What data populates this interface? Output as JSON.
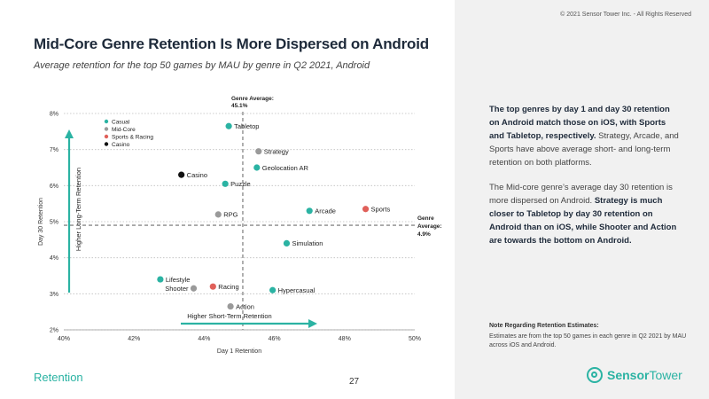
{
  "header": {
    "title": "Mid-Core Genre Retention Is More Dispersed on Android",
    "subtitle": "Average retention for the top 50 games by MAU by genre in Q2 2021, Android",
    "copyright": "© 2021 Sensor Tower Inc. - All Rights Reserved"
  },
  "footer": {
    "section": "Retention",
    "page": "27",
    "logo_bold": "Sensor",
    "logo_regular": "Tower"
  },
  "sidebar": {
    "p1_bold": "The top genres by day 1 and day 30 retention on Android match those on iOS, with Sports and Tabletop, respectively.",
    "p1_rest": " Strategy, Arcade, and Sports have above average short- and long-term retention on both platforms.",
    "p2_start": "The Mid-core genre’s average day 30 retention is more dispersed on Android. ",
    "p2_bold": "Strategy is much closer to Tabletop by day 30 retention on Android than on iOS, while Shooter and Action are towards the bottom on Android.",
    "note_title": "Note Regarding Retention Estimates:",
    "note_body": "Estimates are from the top 50 games in each genre in Q2 2021 by MAU across iOS and Android."
  },
  "chart_data": {
    "type": "scatter",
    "xlabel": "Day 1 Retention",
    "ylabel": "Day 30 Retention",
    "xlim": [
      40,
      50
    ],
    "ylim": [
      2,
      8
    ],
    "x_ticks": [
      40,
      42,
      44,
      46,
      48,
      50
    ],
    "x_tick_labels": [
      "40%",
      "42%",
      "44%",
      "46%",
      "48%",
      "50%"
    ],
    "y_ticks": [
      2,
      3,
      4,
      5,
      6,
      7,
      8
    ],
    "y_tick_labels": [
      "2%",
      "3%",
      "4%",
      "5%",
      "6%",
      "7%",
      "8%"
    ],
    "grid": "horizontal dotted",
    "legend_position": "top-left",
    "legend": [
      {
        "name": "Casual",
        "color": "#2bb3a3"
      },
      {
        "name": "Mid-Core",
        "color": "#9a9a9a"
      },
      {
        "name": "Sports & Racing",
        "color": "#e0605a"
      },
      {
        "name": "Casino",
        "color": "#111111"
      }
    ],
    "avg_x": 45.1,
    "avg_y": 4.9,
    "avg_x_label_line1": "Genre Average:",
    "avg_x_label_line2": "45.1%",
    "avg_y_label_line1": "Genre",
    "avg_y_label_line2": "Average:",
    "avg_y_label_line3": "4.9%",
    "arrow_x_label": "Higher Short-Term Retention",
    "arrow_y_label": "Higher Long-Term Retention",
    "points": [
      {
        "label": "Tabletop",
        "x": 44.7,
        "y": 7.65,
        "group": "Casual",
        "label_pos": "right"
      },
      {
        "label": "Strategy",
        "x": 45.55,
        "y": 6.95,
        "group": "Mid-Core",
        "label_pos": "right"
      },
      {
        "label": "Geolocation AR",
        "x": 45.5,
        "y": 6.5,
        "group": "Casual",
        "label_pos": "right"
      },
      {
        "label": "Casino",
        "x": 43.35,
        "y": 6.3,
        "group": "Casino",
        "label_pos": "right"
      },
      {
        "label": "Puzzle",
        "x": 44.6,
        "y": 6.05,
        "group": "Casual",
        "label_pos": "right"
      },
      {
        "label": "RPG",
        "x": 44.4,
        "y": 5.2,
        "group": "Mid-Core",
        "label_pos": "right"
      },
      {
        "label": "Arcade",
        "x": 47.0,
        "y": 5.3,
        "group": "Casual",
        "label_pos": "right"
      },
      {
        "label": "Sports",
        "x": 48.6,
        "y": 5.35,
        "group": "Sports & Racing",
        "label_pos": "right"
      },
      {
        "label": "Simulation",
        "x": 46.35,
        "y": 4.4,
        "group": "Casual",
        "label_pos": "right"
      },
      {
        "label": "Lifestyle",
        "x": 42.75,
        "y": 3.4,
        "group": "Casual",
        "label_pos": "right"
      },
      {
        "label": "Shooter",
        "x": 43.7,
        "y": 3.15,
        "group": "Mid-Core",
        "label_pos": "left"
      },
      {
        "label": "Racing",
        "x": 44.25,
        "y": 3.2,
        "group": "Sports & Racing",
        "label_pos": "right"
      },
      {
        "label": "Hypercasual",
        "x": 45.95,
        "y": 3.1,
        "group": "Casual",
        "label_pos": "right"
      },
      {
        "label": "Action",
        "x": 44.75,
        "y": 2.65,
        "group": "Mid-Core",
        "label_pos": "right"
      }
    ]
  }
}
